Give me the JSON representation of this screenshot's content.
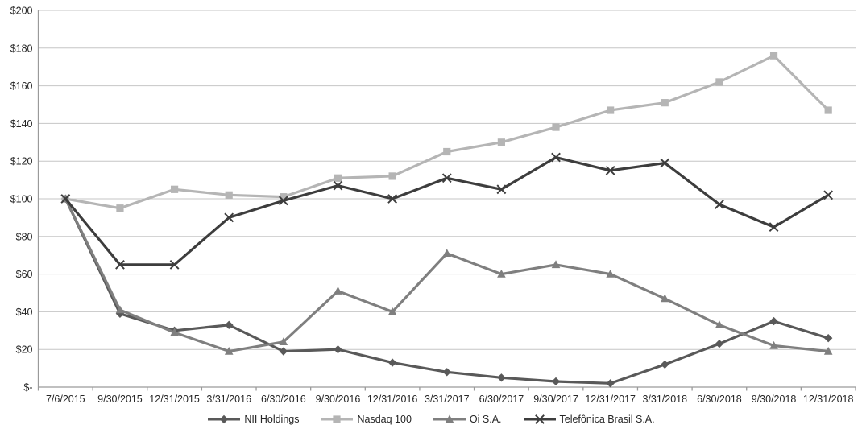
{
  "chart_data": {
    "type": "line",
    "title": "",
    "x_categories": [
      "7/6/2015",
      "9/30/2015",
      "12/31/2015",
      "3/31/2016",
      "6/30/2016",
      "9/30/2016",
      "12/31/2016",
      "3/31/2017",
      "6/30/2017",
      "9/30/2017",
      "12/31/2017",
      "3/31/2018",
      "6/30/2018",
      "9/30/2018",
      "12/31/2018"
    ],
    "series": [
      {
        "name": "NII Holdings",
        "marker": "diamond",
        "color": "#595959",
        "values": [
          100,
          39,
          30,
          33,
          19,
          20,
          13,
          8,
          5,
          3,
          2,
          12,
          23,
          35,
          26
        ]
      },
      {
        "name": "Nasdaq 100",
        "marker": "square",
        "color": "#b5b5b5",
        "values": [
          100,
          95,
          105,
          102,
          101,
          111,
          112,
          125,
          130,
          138,
          147,
          151,
          162,
          176,
          147
        ]
      },
      {
        "name": "Oi S.A.",
        "marker": "triangle",
        "color": "#7f7f7f",
        "values": [
          100,
          41,
          29,
          19,
          24,
          51,
          40,
          71,
          60,
          65,
          60,
          47,
          33,
          22,
          19
        ]
      },
      {
        "name": "Telefônica Brasil S.A.",
        "marker": "xcross",
        "color": "#3d3d3d",
        "values": [
          100,
          65,
          65,
          90,
          99,
          107,
          100,
          111,
          105,
          122,
          115,
          119,
          97,
          85,
          102
        ]
      }
    ],
    "y_tick_labels": [
      "$200",
      "$180",
      "$160",
      "$140",
      "$120",
      "$100",
      "$80",
      "$60",
      "$40",
      "$20",
      "$-"
    ],
    "y_tick_values": [
      200,
      180,
      160,
      140,
      120,
      100,
      80,
      60,
      40,
      20,
      0
    ],
    "ylim": [
      0,
      200
    ],
    "xlabel": "",
    "ylabel": "",
    "grid": true,
    "legend_position": "bottom",
    "colors": {
      "grid": "#c6c6c6",
      "axis": "#9a9a9a",
      "text": "#262626",
      "background": "#ffffff"
    }
  }
}
